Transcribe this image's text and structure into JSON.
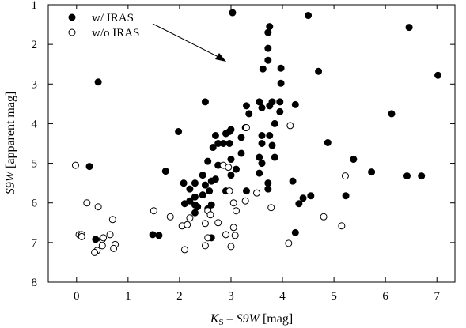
{
  "chart_data": {
    "type": "scatter",
    "xlabel_parts": {
      "k": "K",
      "sub": "S",
      "mid": " – ",
      "s9w": "S9W",
      "unit": " [mag]"
    },
    "ylabel_parts": {
      "s9w": "S9W",
      "unit": " [apparent mag]"
    },
    "xlim": [
      -0.55,
      7.35
    ],
    "ylim": [
      1,
      8
    ],
    "y_inverted": true,
    "x_ticks": [
      0,
      1,
      2,
      3,
      4,
      5,
      6,
      7
    ],
    "y_ticks": [
      1,
      2,
      3,
      4,
      5,
      6,
      7,
      8
    ],
    "legend_position": "top-left",
    "annotation": "arrow pointing from legend toward upper-middle region",
    "series": [
      {
        "name": "w/ IRAS",
        "marker": "filled-circle",
        "points": [
          [
            3.03,
            1.2
          ],
          [
            4.5,
            1.27
          ],
          [
            6.46,
            1.57
          ],
          [
            3.75,
            1.55
          ],
          [
            3.72,
            1.7
          ],
          [
            3.72,
            2.1
          ],
          [
            3.62,
            2.62
          ],
          [
            3.97,
            2.6
          ],
          [
            4.7,
            2.68
          ],
          [
            7.02,
            2.78
          ],
          [
            0.42,
            2.95
          ],
          [
            3.72,
            2.4
          ],
          [
            3.97,
            2.98
          ],
          [
            2.5,
            3.45
          ],
          [
            3.3,
            3.55
          ],
          [
            3.55,
            3.45
          ],
          [
            3.8,
            3.45
          ],
          [
            3.95,
            3.45
          ],
          [
            4.25,
            3.52
          ],
          [
            3.6,
            3.6
          ],
          [
            3.75,
            3.55
          ],
          [
            3.95,
            3.7
          ],
          [
            6.12,
            3.75
          ],
          [
            3.35,
            3.75
          ],
          [
            3.85,
            4.0
          ],
          [
            3.28,
            4.1
          ],
          [
            2.97,
            4.2
          ],
          [
            2.9,
            4.25
          ],
          [
            3.0,
            4.15
          ],
          [
            2.7,
            4.3
          ],
          [
            2.85,
            4.5
          ],
          [
            3.2,
            4.35
          ],
          [
            2.65,
            4.6
          ],
          [
            2.75,
            4.5
          ],
          [
            2.97,
            4.5
          ],
          [
            3.6,
            4.3
          ],
          [
            3.75,
            4.3
          ],
          [
            3.6,
            4.5
          ],
          [
            3.8,
            4.55
          ],
          [
            1.98,
            4.2
          ],
          [
            4.88,
            4.48
          ],
          [
            3.2,
            4.75
          ],
          [
            3.0,
            4.9
          ],
          [
            3.85,
            4.85
          ],
          [
            2.55,
            4.95
          ],
          [
            2.75,
            5.05
          ],
          [
            3.1,
            5.15
          ],
          [
            3.55,
            4.85
          ],
          [
            5.38,
            4.9
          ],
          [
            3.6,
            5.0
          ],
          [
            0.25,
            5.08
          ],
          [
            1.73,
            5.2
          ],
          [
            2.08,
            5.5
          ],
          [
            2.45,
            5.3
          ],
          [
            2.3,
            5.5
          ],
          [
            2.7,
            5.4
          ],
          [
            2.62,
            5.45
          ],
          [
            3.0,
            5.3
          ],
          [
            3.55,
            5.25
          ],
          [
            5.73,
            5.22
          ],
          [
            6.42,
            5.32
          ],
          [
            6.7,
            5.32
          ],
          [
            2.5,
            5.55
          ],
          [
            2.2,
            5.65
          ],
          [
            2.3,
            5.85
          ],
          [
            2.58,
            5.7
          ],
          [
            2.9,
            5.7
          ],
          [
            3.3,
            5.7
          ],
          [
            3.72,
            5.5
          ],
          [
            3.72,
            5.65
          ],
          [
            4.2,
            5.45
          ],
          [
            4.4,
            5.88
          ],
          [
            4.55,
            5.82
          ],
          [
            5.23,
            5.82
          ],
          [
            2.2,
            5.95
          ],
          [
            2.1,
            6.02
          ],
          [
            2.45,
            5.8
          ],
          [
            2.3,
            6.05
          ],
          [
            2.62,
            6.05
          ],
          [
            2.35,
            6.1
          ],
          [
            4.32,
            6.02
          ],
          [
            2.3,
            6.25
          ],
          [
            2.55,
            6.15
          ],
          [
            1.48,
            6.8
          ],
          [
            1.6,
            6.82
          ],
          [
            2.62,
            6.88
          ],
          [
            4.25,
            6.75
          ],
          [
            0.37,
            6.92
          ]
        ]
      },
      {
        "name": "w/o IRAS",
        "marker": "open-circle",
        "points": [
          [
            -0.02,
            5.05
          ],
          [
            0.2,
            6.0
          ],
          [
            0.42,
            6.1
          ],
          [
            0.7,
            6.42
          ],
          [
            0.05,
            6.8
          ],
          [
            0.1,
            6.8
          ],
          [
            0.1,
            6.85
          ],
          [
            0.5,
            6.92
          ],
          [
            0.52,
            6.88
          ],
          [
            0.65,
            6.8
          ],
          [
            0.75,
            7.05
          ],
          [
            0.72,
            7.15
          ],
          [
            0.5,
            7.08
          ],
          [
            0.4,
            7.2
          ],
          [
            0.35,
            7.25
          ],
          [
            1.5,
            6.2
          ],
          [
            1.82,
            6.35
          ],
          [
            2.05,
            6.58
          ],
          [
            2.15,
            6.55
          ],
          [
            2.2,
            6.38
          ],
          [
            2.1,
            7.18
          ],
          [
            2.5,
            6.52
          ],
          [
            2.55,
            6.2
          ],
          [
            2.6,
            6.3
          ],
          [
            2.75,
            6.5
          ],
          [
            2.55,
            6.88
          ],
          [
            2.5,
            7.08
          ],
          [
            2.9,
            6.8
          ],
          [
            3.05,
            6.62
          ],
          [
            3.08,
            6.82
          ],
          [
            3.0,
            7.1
          ],
          [
            3.05,
            6.0
          ],
          [
            3.1,
            6.2
          ],
          [
            2.97,
            5.7
          ],
          [
            3.28,
            5.95
          ],
          [
            3.5,
            5.75
          ],
          [
            3.78,
            6.12
          ],
          [
            2.85,
            5.05
          ],
          [
            2.95,
            5.1
          ],
          [
            3.3,
            4.1
          ],
          [
            4.15,
            4.05
          ],
          [
            4.8,
            6.35
          ],
          [
            5.15,
            6.58
          ],
          [
            5.22,
            5.32
          ],
          [
            4.12,
            7.02
          ]
        ]
      }
    ]
  },
  "legend": {
    "item_1": "w/ IRAS",
    "item_2": "w/o IRAS"
  }
}
